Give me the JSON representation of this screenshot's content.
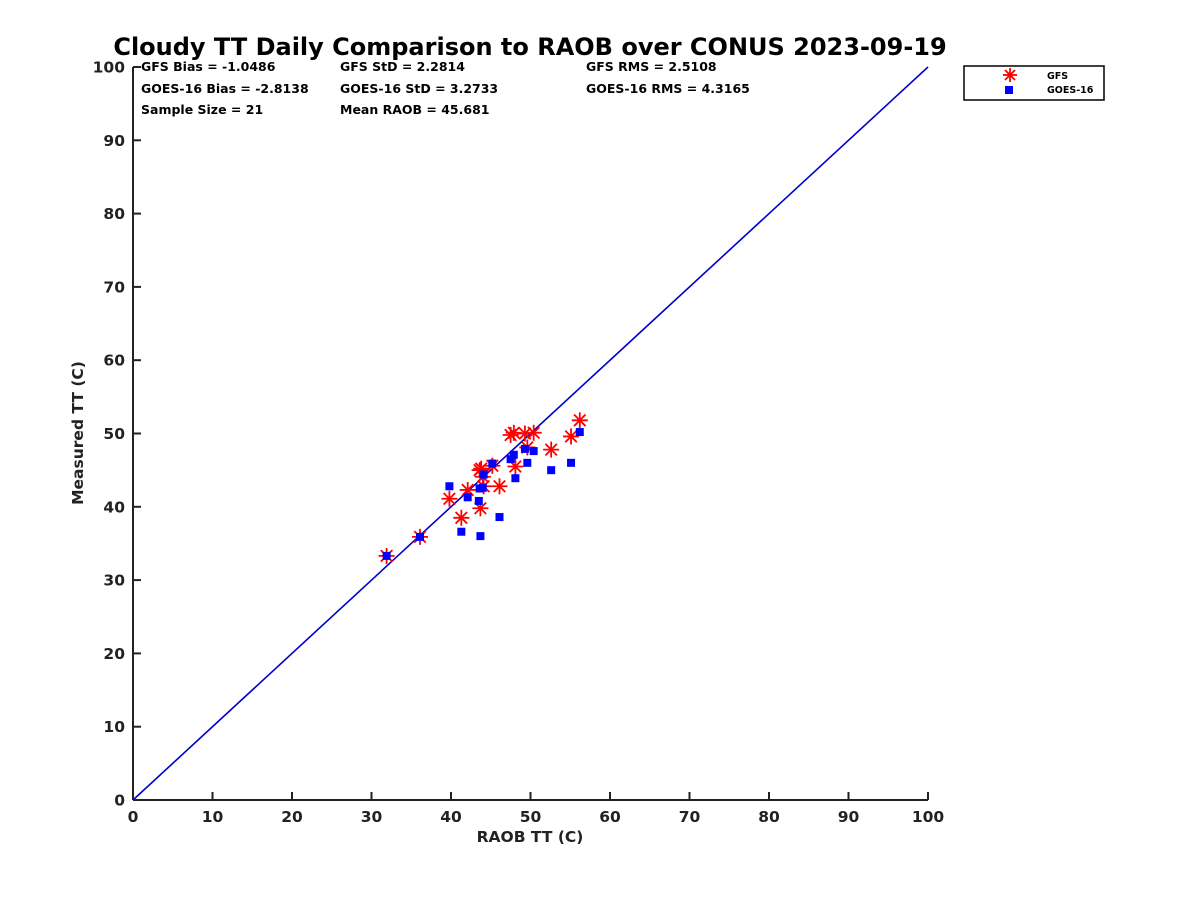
{
  "chart_data": {
    "type": "scatter",
    "title": "Cloudy TT Daily Comparison to RAOB over CONUS 2023-09-19",
    "xlabel": "RAOB TT (C)",
    "ylabel": "Measured TT (C)",
    "xlim": [
      0,
      100
    ],
    "ylim": [
      0,
      100
    ],
    "xticks": [
      "0",
      "10",
      "20",
      "30",
      "40",
      "50",
      "60",
      "70",
      "80",
      "90",
      "100"
    ],
    "yticks": [
      "0",
      "10",
      "20",
      "30",
      "40",
      "50",
      "60",
      "70",
      "80",
      "90",
      "100"
    ],
    "grid": false,
    "legend_position": "top-right, outside plot",
    "reference_line": {
      "type": "one-to-one",
      "from": [
        0,
        0
      ],
      "to": [
        100,
        100
      ],
      "color": "#0000cc"
    },
    "stats": [
      [
        "GFS Bias = -1.0486",
        "GFS StD = 2.2814",
        "GFS RMS = 2.5108"
      ],
      [
        "GOES-16 Bias = -2.8138",
        "GOES-16 StD = 3.2733",
        "GOES-16 RMS = 4.3165"
      ],
      [
        "Sample Size = 21",
        "Mean RAOB = 45.681",
        ""
      ]
    ],
    "series": [
      {
        "name": "GFS",
        "marker": "asterisk",
        "color": "#ff0000",
        "x": [
          31.9,
          36.1,
          39.8,
          41.3,
          42.1,
          43.6,
          43.7,
          44.0,
          44.1,
          45.2,
          46.1,
          47.5,
          47.9,
          48.1,
          49.3,
          49.6,
          50.4,
          52.6,
          55.1,
          56.2,
          43.8
        ],
        "y": [
          33.3,
          35.9,
          41.1,
          38.5,
          42.3,
          45.0,
          39.8,
          44.1,
          42.8,
          45.6,
          42.8,
          49.8,
          50.1,
          45.5,
          50.0,
          48.1,
          50.1,
          47.8,
          49.6,
          51.8,
          45.2
        ]
      },
      {
        "name": "GOES-16",
        "marker": "square",
        "color": "#0000ff",
        "x": [
          31.9,
          36.1,
          39.8,
          41.3,
          42.1,
          43.6,
          43.7,
          44.0,
          44.1,
          45.2,
          46.1,
          47.5,
          47.9,
          48.1,
          49.3,
          49.6,
          50.4,
          52.6,
          55.1,
          56.2,
          43.5
        ],
        "y": [
          33.3,
          35.9,
          42.8,
          36.6,
          41.3,
          42.5,
          36.0,
          42.6,
          44.4,
          45.9,
          38.6,
          46.5,
          47.1,
          43.9,
          47.9,
          46.0,
          47.6,
          45.0,
          46.0,
          50.2,
          40.8
        ]
      }
    ]
  }
}
